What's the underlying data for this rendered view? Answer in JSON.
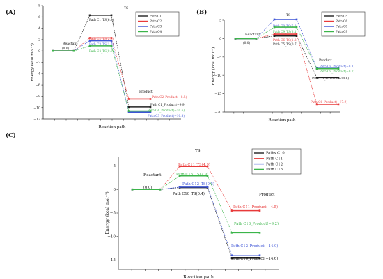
{
  "chart_data": [
    {
      "panel": "(A)",
      "type": "line",
      "title": "",
      "xlabel": "Reaction path",
      "ylabel": "Energy (kcal mol⁻¹)",
      "ylim": [
        -12,
        8
      ],
      "yticks": [
        8,
        6,
        4,
        2,
        0,
        -2,
        -4,
        -6,
        -8,
        -10,
        -12
      ],
      "stage_labels": [
        "Reactant",
        "TS",
        "Product"
      ],
      "reactant_value_label": "(0.0)",
      "legend": [
        "Path C1",
        "Path C2",
        "Path C3",
        "Path C4"
      ],
      "series": [
        {
          "name": "Path C1",
          "color": "#222222",
          "values": [
            0,
            6.3,
            -9.9
          ],
          "ts_label": "Path C1_TS(6.3)",
          "prod_label": "Path C1_Product(−9.9)"
        },
        {
          "name": "Path C2",
          "color": "#e83a3a",
          "values": [
            0,
            2.3,
            -8.5
          ],
          "ts_label": "Path C2_TS(2.3)",
          "prod_label": "Path C2_Product(−8.5)"
        },
        {
          "name": "Path C3",
          "color": "#3d54d6",
          "values": [
            0,
            1.8,
            -10.8
          ],
          "ts_label": "Path C3_TS(1.8)",
          "prod_label": "Path C3_Product(−10.8)"
        },
        {
          "name": "Path C4",
          "color": "#3bb54a",
          "values": [
            0,
            0.9,
            -10.6
          ],
          "ts_label": "Path C4_TS(0.9)",
          "prod_label": "Path C4_Product(−10.6)"
        }
      ]
    },
    {
      "panel": "(B)",
      "type": "line",
      "title": "",
      "xlabel": "Reaction path",
      "ylabel": "Energy (kcal mol⁻¹)",
      "ylim": [
        -20,
        5
      ],
      "yticks": [
        5,
        0,
        -5,
        -10,
        -15,
        -20
      ],
      "stage_labels": [
        "Reactant",
        "TS",
        "Product"
      ],
      "reactant_value_label": "(0.0)",
      "legend": [
        "Path C5",
        "Path C6",
        "Path C8",
        "Path C9"
      ],
      "series": [
        {
          "name": "Path C5",
          "color": "#222222",
          "values": [
            0,
            0.7,
            -10.6
          ],
          "ts_label": "Path C5_TS(0.7)",
          "prod_label": "Path C5_Product(−10.6)"
        },
        {
          "name": "Path C6",
          "color": "#e83a3a",
          "values": [
            0,
            1.2,
            -17.9
          ],
          "ts_label": "Path C6_TS(1.2)",
          "prod_label": "Path C6_Product(−17.9)"
        },
        {
          "name": "Path C8",
          "color": "#3d54d6",
          "values": [
            0,
            5.2,
            -8.1
          ],
          "ts_label": "Path C8_TS(5.2)",
          "prod_label": "Path C8_Product(−8.1)"
        },
        {
          "name": "Path C9",
          "color": "#3bb54a",
          "values": [
            0,
            3.1,
            -8.2
          ],
          "ts_label": "Path C9_TS(3.1)",
          "prod_label": "Path C9_Product(−8.2)"
        }
      ]
    },
    {
      "panel": "(C)",
      "type": "line",
      "title": "",
      "xlabel": "Reaction path",
      "ylabel": "Energy (kcal mol⁻¹)",
      "ylim": [
        -17,
        7
      ],
      "yticks": [
        5,
        0,
        -5,
        -10,
        -15
      ],
      "stage_labels": [
        "Reactant",
        "TS",
        "Product"
      ],
      "reactant_value_label": "(0.0)",
      "legend": [
        "Paths C10",
        "Path C11",
        "Path C12",
        "Path C13"
      ],
      "series": [
        {
          "name": "Paths C10",
          "color": "#222222",
          "values": [
            0,
            0.4,
            -14.6
          ],
          "ts_label": "Path C10_TS(0.4)",
          "prod_label": "Path C10_Product(−14.6)"
        },
        {
          "name": "Path C11",
          "color": "#e83a3a",
          "values": [
            0,
            4.9,
            -4.5
          ],
          "ts_label": "Path C11_TS(4.9)",
          "prod_label": "Path C11_Product(−4.5)"
        },
        {
          "name": "Path C12",
          "color": "#3d54d6",
          "values": [
            0,
            0.5,
            -14.0
          ],
          "ts_label": "Path C12_TS(0.5)",
          "prod_label": "Path C12_Product(−14.0)"
        },
        {
          "name": "Path C13",
          "color": "#3bb54a",
          "values": [
            0,
            2.9,
            -9.2
          ],
          "ts_label": "Path C13_TS(2.9)",
          "prod_label": "Path C13_Product(−9.2)"
        }
      ]
    }
  ]
}
